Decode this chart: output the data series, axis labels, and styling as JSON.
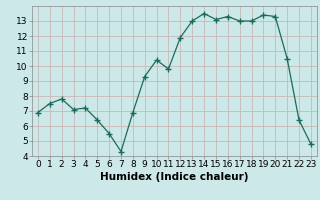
{
  "x": [
    0,
    1,
    2,
    3,
    4,
    5,
    6,
    7,
    8,
    9,
    10,
    11,
    12,
    13,
    14,
    15,
    16,
    17,
    18,
    19,
    20,
    21,
    22,
    23
  ],
  "y": [
    6.9,
    7.5,
    7.8,
    7.1,
    7.2,
    6.4,
    5.5,
    4.3,
    6.9,
    9.3,
    10.4,
    9.8,
    11.9,
    13.0,
    13.5,
    13.1,
    13.3,
    13.0,
    13.0,
    13.4,
    13.3,
    10.5,
    6.4,
    4.8
  ],
  "xlabel": "Humidex (Indice chaleur)",
  "ylim": [
    4,
    14
  ],
  "xlim": [
    -0.5,
    23.5
  ],
  "yticks": [
    4,
    5,
    6,
    7,
    8,
    9,
    10,
    11,
    12,
    13
  ],
  "xticks": [
    0,
    1,
    2,
    3,
    4,
    5,
    6,
    7,
    8,
    9,
    10,
    11,
    12,
    13,
    14,
    15,
    16,
    17,
    18,
    19,
    20,
    21,
    22,
    23
  ],
  "line_color": "#1a6b5a",
  "marker": "+",
  "marker_size": 4,
  "bg_color": "#cde8e8",
  "grid_color": "#c8b8b8",
  "xlabel_fontsize": 7.5,
  "tick_fontsize": 6.5
}
